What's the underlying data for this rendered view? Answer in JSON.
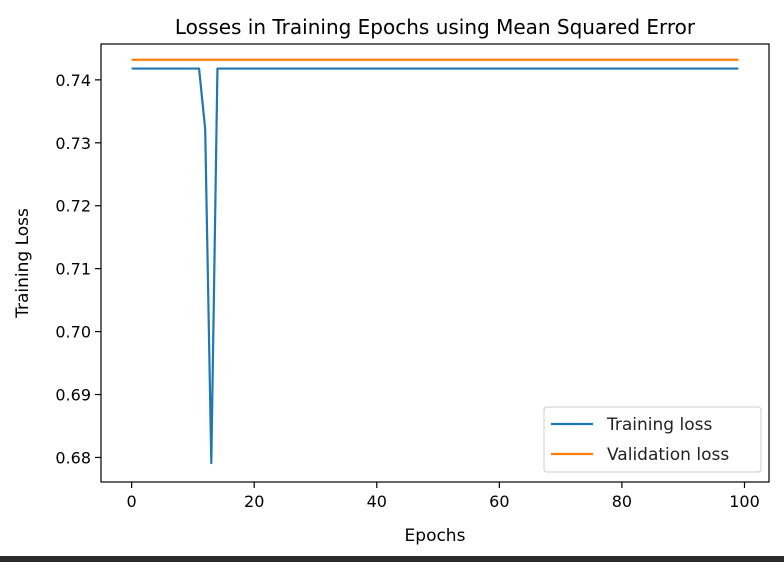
{
  "chart_data": {
    "type": "line",
    "title": "Losses in Training Epochs using Mean Squared Error",
    "xlabel": "Epochs",
    "ylabel": "Training Loss",
    "xlim": [
      -5,
      104
    ],
    "ylim": [
      0.6761,
      0.7457
    ],
    "xticks": [
      0,
      20,
      40,
      60,
      80,
      100
    ],
    "xtick_labels": [
      "0",
      "20",
      "40",
      "60",
      "80",
      "100"
    ],
    "yticks": [
      0.68,
      0.69,
      0.7,
      0.71,
      0.72,
      0.73,
      0.74
    ],
    "ytick_labels": [
      "0.68",
      "0.69",
      "0.70",
      "0.71",
      "0.72",
      "0.73",
      "0.74"
    ],
    "grid": false,
    "legend_position": "lower-right",
    "series": [
      {
        "name": "Training loss",
        "color": "#1f77b4",
        "x": [
          0,
          11,
          12,
          13,
          14,
          99
        ],
        "y": [
          0.7418,
          0.7418,
          0.7322,
          0.6791,
          0.7418,
          0.7418
        ]
      },
      {
        "name": "Validation loss",
        "color": "#ff7f0e",
        "x": [
          0,
          99
        ],
        "y": [
          0.7432,
          0.7432
        ]
      }
    ]
  }
}
